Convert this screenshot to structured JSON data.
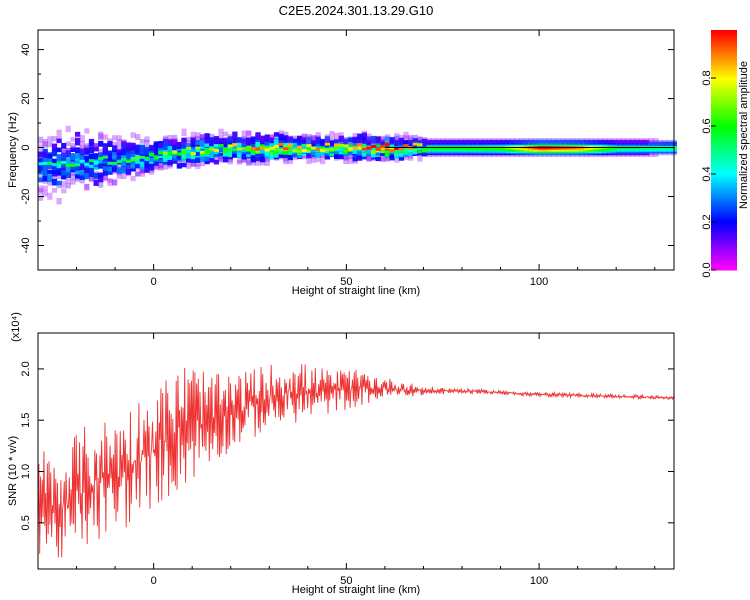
{
  "title": "C2E5.2024.301.13.29.G10",
  "chart_data": [
    {
      "type": "heatmap",
      "xlabel": "Height of straight line (km)",
      "ylabel": "Frequency (Hz)",
      "xlim": [
        -30,
        135
      ],
      "ylim": [
        -50,
        48
      ],
      "x_ticks": [
        0,
        50,
        100
      ],
      "x_tick_labels": [
        "0",
        "50",
        "100"
      ],
      "y_ticks": [
        -40,
        -20,
        0,
        20,
        40
      ],
      "y_tick_labels": [
        "-40",
        "-20",
        "0",
        "20",
        "40"
      ],
      "colorbar": {
        "label": "Normalized spectral amplitude",
        "range": [
          0,
          1
        ],
        "ticks": [
          0.0,
          0.2,
          0.4,
          0.6,
          0.8
        ],
        "tick_labels": [
          "0.0",
          "0.2",
          "0.4",
          "0.6",
          "0.8"
        ]
      },
      "ridge": {
        "x": [
          -30,
          -20,
          -10,
          0,
          10,
          20,
          30,
          40,
          50,
          60,
          70,
          80,
          90,
          100,
          110,
          120,
          135
        ],
        "frequency": [
          -8,
          -6,
          -5,
          -3,
          -1,
          0,
          0,
          0,
          0,
          0,
          0,
          0,
          0,
          0,
          0,
          0,
          0
        ],
        "spread": [
          18,
          15,
          12,
          8,
          7,
          6,
          6,
          5,
          5,
          5,
          4,
          4,
          4,
          4,
          4,
          4,
          4
        ],
        "amplitude": [
          0.3,
          0.35,
          0.35,
          0.45,
          0.5,
          0.55,
          0.7,
          0.65,
          0.65,
          0.8,
          0.55,
          0.55,
          0.6,
          0.95,
          0.85,
          0.5,
          0.45
        ]
      }
    },
    {
      "type": "line",
      "xlabel": "Height of straight line (km)",
      "ylabel": "SNR (10 * v/v)",
      "y_multiplier": "(x10⁴)",
      "xlim": [
        -30,
        135
      ],
      "ylim": [
        0.05,
        2.35
      ],
      "x_ticks": [
        0,
        50,
        100
      ],
      "x_tick_labels": [
        "0",
        "50",
        "100"
      ],
      "y_ticks": [
        0.5,
        1.0,
        1.5,
        2.0
      ],
      "y_tick_labels": [
        "0.5",
        "1.0",
        "1.5",
        "2.0"
      ],
      "color": "#ee3333",
      "series": [
        {
          "x": [
            -30,
            -25,
            -20,
            -15,
            -10,
            -5,
            0,
            5,
            10,
            15,
            20,
            25,
            30,
            35,
            40,
            45,
            50,
            55,
            60,
            65,
            70,
            75,
            80,
            85,
            90,
            95,
            100,
            105,
            110,
            115,
            120,
            125,
            130,
            135
          ],
          "y_low": [
            0.2,
            0.1,
            0.15,
            0.3,
            0.35,
            0.5,
            0.65,
            0.75,
            0.9,
            1.05,
            1.2,
            1.3,
            1.4,
            1.45,
            1.5,
            1.55,
            1.6,
            1.65,
            1.7,
            1.72,
            1.74,
            1.75,
            1.76,
            1.76,
            1.75,
            1.74,
            1.73,
            1.73,
            1.72,
            1.72,
            1.71,
            1.71,
            1.7,
            1.7
          ],
          "y_high": [
            1.3,
            1.1,
            1.4,
            1.5,
            1.55,
            1.7,
            1.8,
            2.0,
            2.1,
            1.95,
            1.95,
            2.0,
            2.05,
            2.1,
            2.05,
            2.0,
            2.0,
            1.98,
            1.92,
            1.88,
            1.83,
            1.82,
            1.81,
            1.8,
            1.79,
            1.78,
            1.77,
            1.77,
            1.76,
            1.76,
            1.75,
            1.75,
            1.74,
            1.73
          ]
        }
      ]
    }
  ]
}
